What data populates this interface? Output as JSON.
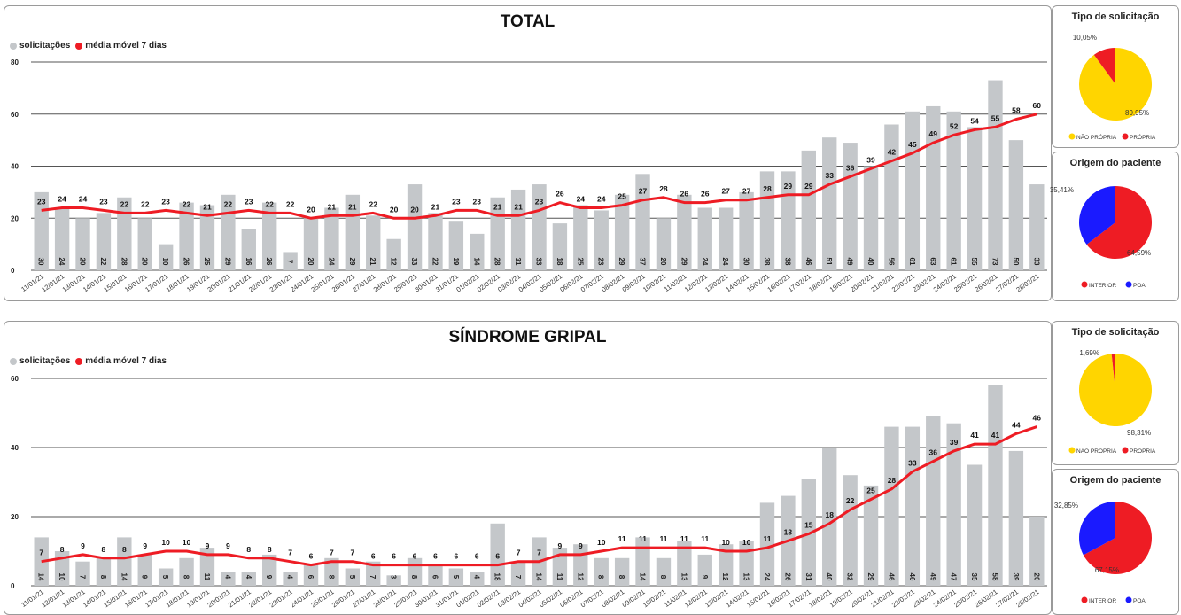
{
  "colors": {
    "bar": "#c4c7ca",
    "line": "#ee1c24",
    "propria": "#ee1c24",
    "nao_propria": "#ffd500",
    "interior": "#ee1c24",
    "poa": "#1a1aff"
  },
  "dates": [
    "11/01/21",
    "12/01/21",
    "13/01/21",
    "14/01/21",
    "15/01/21",
    "16/01/21",
    "17/01/21",
    "18/01/21",
    "19/01/21",
    "20/01/21",
    "21/01/21",
    "22/01/21",
    "23/01/21",
    "24/01/21",
    "25/01/21",
    "26/01/21",
    "27/01/21",
    "28/01/21",
    "29/01/21",
    "30/01/21",
    "31/01/21",
    "01/02/21",
    "02/02/21",
    "03/02/21",
    "04/02/21",
    "05/02/21",
    "06/02/21",
    "07/02/21",
    "08/02/21",
    "09/02/21",
    "10/02/21",
    "11/02/21",
    "12/02/21",
    "13/02/21",
    "14/02/21",
    "15/02/21",
    "16/02/21",
    "17/02/21",
    "18/02/21",
    "19/02/21",
    "20/02/21",
    "21/02/21",
    "22/02/21",
    "23/02/21",
    "24/02/21",
    "25/02/21",
    "26/02/21",
    "27/02/21",
    "28/02/21"
  ],
  "chart_data": [
    {
      "type": "bar",
      "title": "TOTAL",
      "legend": [
        "solicitações",
        "média móvel 7 dias"
      ],
      "ylim": [
        0,
        80
      ],
      "yticks": [
        0,
        20,
        40,
        60,
        80
      ],
      "series": [
        {
          "name": "solicitações",
          "values": [
            30,
            24,
            20,
            22,
            28,
            20,
            10,
            26,
            25,
            29,
            16,
            26,
            7,
            20,
            24,
            29,
            21,
            12,
            33,
            22,
            19,
            14,
            28,
            31,
            33,
            18,
            25,
            23,
            29,
            37,
            20,
            29,
            24,
            24,
            30,
            38,
            38,
            46,
            51,
            49,
            40,
            56,
            61,
            63,
            61,
            55,
            73,
            50,
            33
          ]
        },
        {
          "name": "média móvel 7 dias",
          "values": [
            23,
            24,
            24,
            23,
            22,
            22,
            23,
            22,
            21,
            22,
            23,
            22,
            22,
            20,
            21,
            21,
            22,
            20,
            20,
            21,
            23,
            23,
            21,
            21,
            23,
            26,
            24,
            24,
            25,
            27,
            28,
            26,
            26,
            27,
            27,
            28,
            29,
            29,
            33,
            36,
            39,
            42,
            45,
            49,
            52,
            54,
            55,
            58,
            60
          ]
        }
      ]
    },
    {
      "type": "bar",
      "title": "SÍNDROME GRIPAL",
      "legend": [
        "solicitações",
        "média móvel 7 dias"
      ],
      "ylim": [
        0,
        60
      ],
      "yticks": [
        0,
        20,
        40,
        60
      ],
      "series": [
        {
          "name": "solicitações",
          "values": [
            14,
            10,
            7,
            8,
            14,
            9,
            5,
            8,
            11,
            4,
            4,
            9,
            4,
            6,
            8,
            5,
            7,
            3,
            8,
            6,
            5,
            4,
            18,
            7,
            14,
            11,
            12,
            8,
            8,
            14,
            8,
            13,
            9,
            12,
            13,
            24,
            26,
            31,
            40,
            32,
            29,
            46,
            46,
            49,
            47,
            35,
            58,
            39,
            20
          ]
        },
        {
          "name": "média móvel 7 dias",
          "values": [
            7,
            8,
            9,
            8,
            8,
            9,
            10,
            10,
            9,
            9,
            8,
            8,
            7,
            6,
            7,
            7,
            6,
            6,
            6,
            6,
            6,
            6,
            6,
            7,
            7,
            9,
            9,
            10,
            11,
            11,
            11,
            11,
            11,
            10,
            10,
            11,
            13,
            15,
            18,
            22,
            25,
            28,
            33,
            36,
            39,
            41,
            41,
            44,
            46
          ]
        }
      ]
    },
    {
      "type": "pie",
      "title": "Tipo de solicitação",
      "slices": [
        {
          "label": "NÃO PRÓPRIA",
          "value": 89.95,
          "text": "89,95%"
        },
        {
          "label": "PRÓPRIA",
          "value": 10.05,
          "text": "10,05%"
        }
      ]
    },
    {
      "type": "pie",
      "title": "Origem do paciente",
      "slices": [
        {
          "label": "INTERIOR",
          "value": 64.59,
          "text": "64,59%"
        },
        {
          "label": "POA",
          "value": 35.41,
          "text": "35,41%"
        }
      ]
    },
    {
      "type": "pie",
      "title": "Tipo de solicitação",
      "slices": [
        {
          "label": "NÃO PRÓPRIA",
          "value": 98.31,
          "text": "98,31%"
        },
        {
          "label": "PRÓPRIA",
          "value": 1.69,
          "text": "1,69%"
        }
      ]
    },
    {
      "type": "pie",
      "title": "Origem do paciente",
      "slices": [
        {
          "label": "INTERIOR",
          "value": 67.15,
          "text": "67,15%"
        },
        {
          "label": "POA",
          "value": 32.85,
          "text": "32,85%"
        }
      ]
    }
  ]
}
